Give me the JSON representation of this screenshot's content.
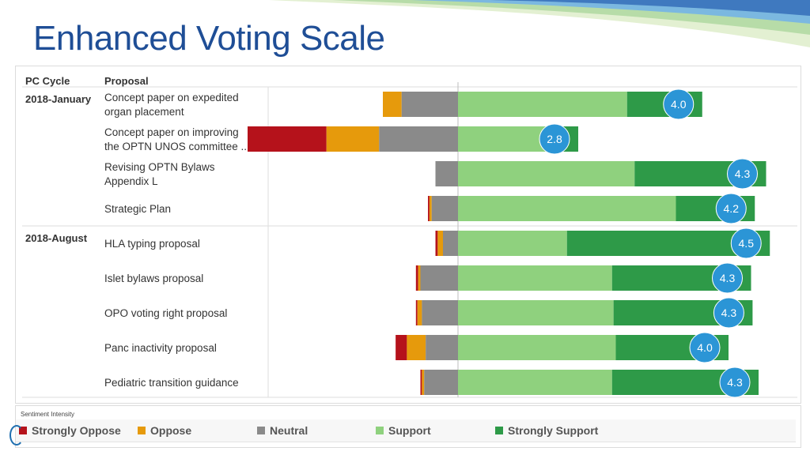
{
  "slide": {
    "title": "Enhanced Voting Scale"
  },
  "header": {
    "cycle_label": "PC Cycle",
    "proposal_label": "Proposal"
  },
  "groups": [
    {
      "label": "2018-January"
    },
    {
      "label": "2018-August"
    }
  ],
  "colors": {
    "strongly_oppose": "#b5121b",
    "oppose": "#e69a0c",
    "neutral": "#8a8a8a",
    "support": "#8fd17e",
    "strongly_support": "#2e9a48",
    "score_bubble": "#2b95d6",
    "title": "#1f4e96"
  },
  "legend": {
    "title": "Sentiment Intensity",
    "items": [
      {
        "label": "Strongly Oppose",
        "color": "#b5121b"
      },
      {
        "label": "Oppose",
        "color": "#e69a0c"
      },
      {
        "label": "Neutral",
        "color": "#8a8a8a"
      },
      {
        "label": "Support",
        "color": "#8fd17e"
      },
      {
        "label": "Strongly Support",
        "color": "#2e9a48"
      }
    ]
  },
  "chart_data": {
    "type": "bar",
    "orientation": "horizontal-diverging-stacked",
    "segments": [
      "Strongly Oppose",
      "Oppose",
      "Neutral",
      "Support",
      "Strongly Support"
    ],
    "rows": [
      {
        "cycle": "2018-January",
        "lines": [
          "Concept paper on expedited",
          "organ placement"
        ],
        "values": [
          0,
          2.5,
          7.5,
          22.5,
          10
        ],
        "score": "4.0"
      },
      {
        "cycle": "",
        "lines": [
          "Concept paper on improving",
          "the OPTN UNOS committee .."
        ],
        "values": [
          10.5,
          7,
          10.5,
          13,
          3
        ],
        "score": "2.8"
      },
      {
        "cycle": "",
        "lines": [
          "Revising OPTN Bylaws",
          "Appendix L"
        ],
        "values": [
          0,
          0,
          3,
          23.5,
          17.5
        ],
        "score": "4.3"
      },
      {
        "cycle": "",
        "lines": [
          "Strategic Plan"
        ],
        "values": [
          0.2,
          0.3,
          3.5,
          29,
          10.5
        ],
        "score": "4.2"
      },
      {
        "cycle": "2018-August",
        "lines": [
          "HLA typing proposal"
        ],
        "values": [
          0.3,
          0.7,
          2,
          14.5,
          27
        ],
        "score": "4.5"
      },
      {
        "cycle": "",
        "lines": [
          "Islet bylaws proposal"
        ],
        "values": [
          0.3,
          0.3,
          5,
          20.5,
          18.5
        ],
        "score": "4.3"
      },
      {
        "cycle": "",
        "lines": [
          "OPO voting right proposal"
        ],
        "values": [
          0.2,
          0.6,
          4.8,
          20.7,
          18.5
        ],
        "score": "4.3"
      },
      {
        "cycle": "",
        "lines": [
          "Panc inactivity proposal"
        ],
        "values": [
          1.5,
          2.5,
          4.3,
          21,
          15
        ],
        "score": "4.0"
      },
      {
        "cycle": "",
        "lines": [
          "Pediatric transition guidance"
        ],
        "values": [
          0.2,
          0.3,
          4.5,
          20.5,
          19.5
        ],
        "score": "4.3"
      }
    ]
  }
}
